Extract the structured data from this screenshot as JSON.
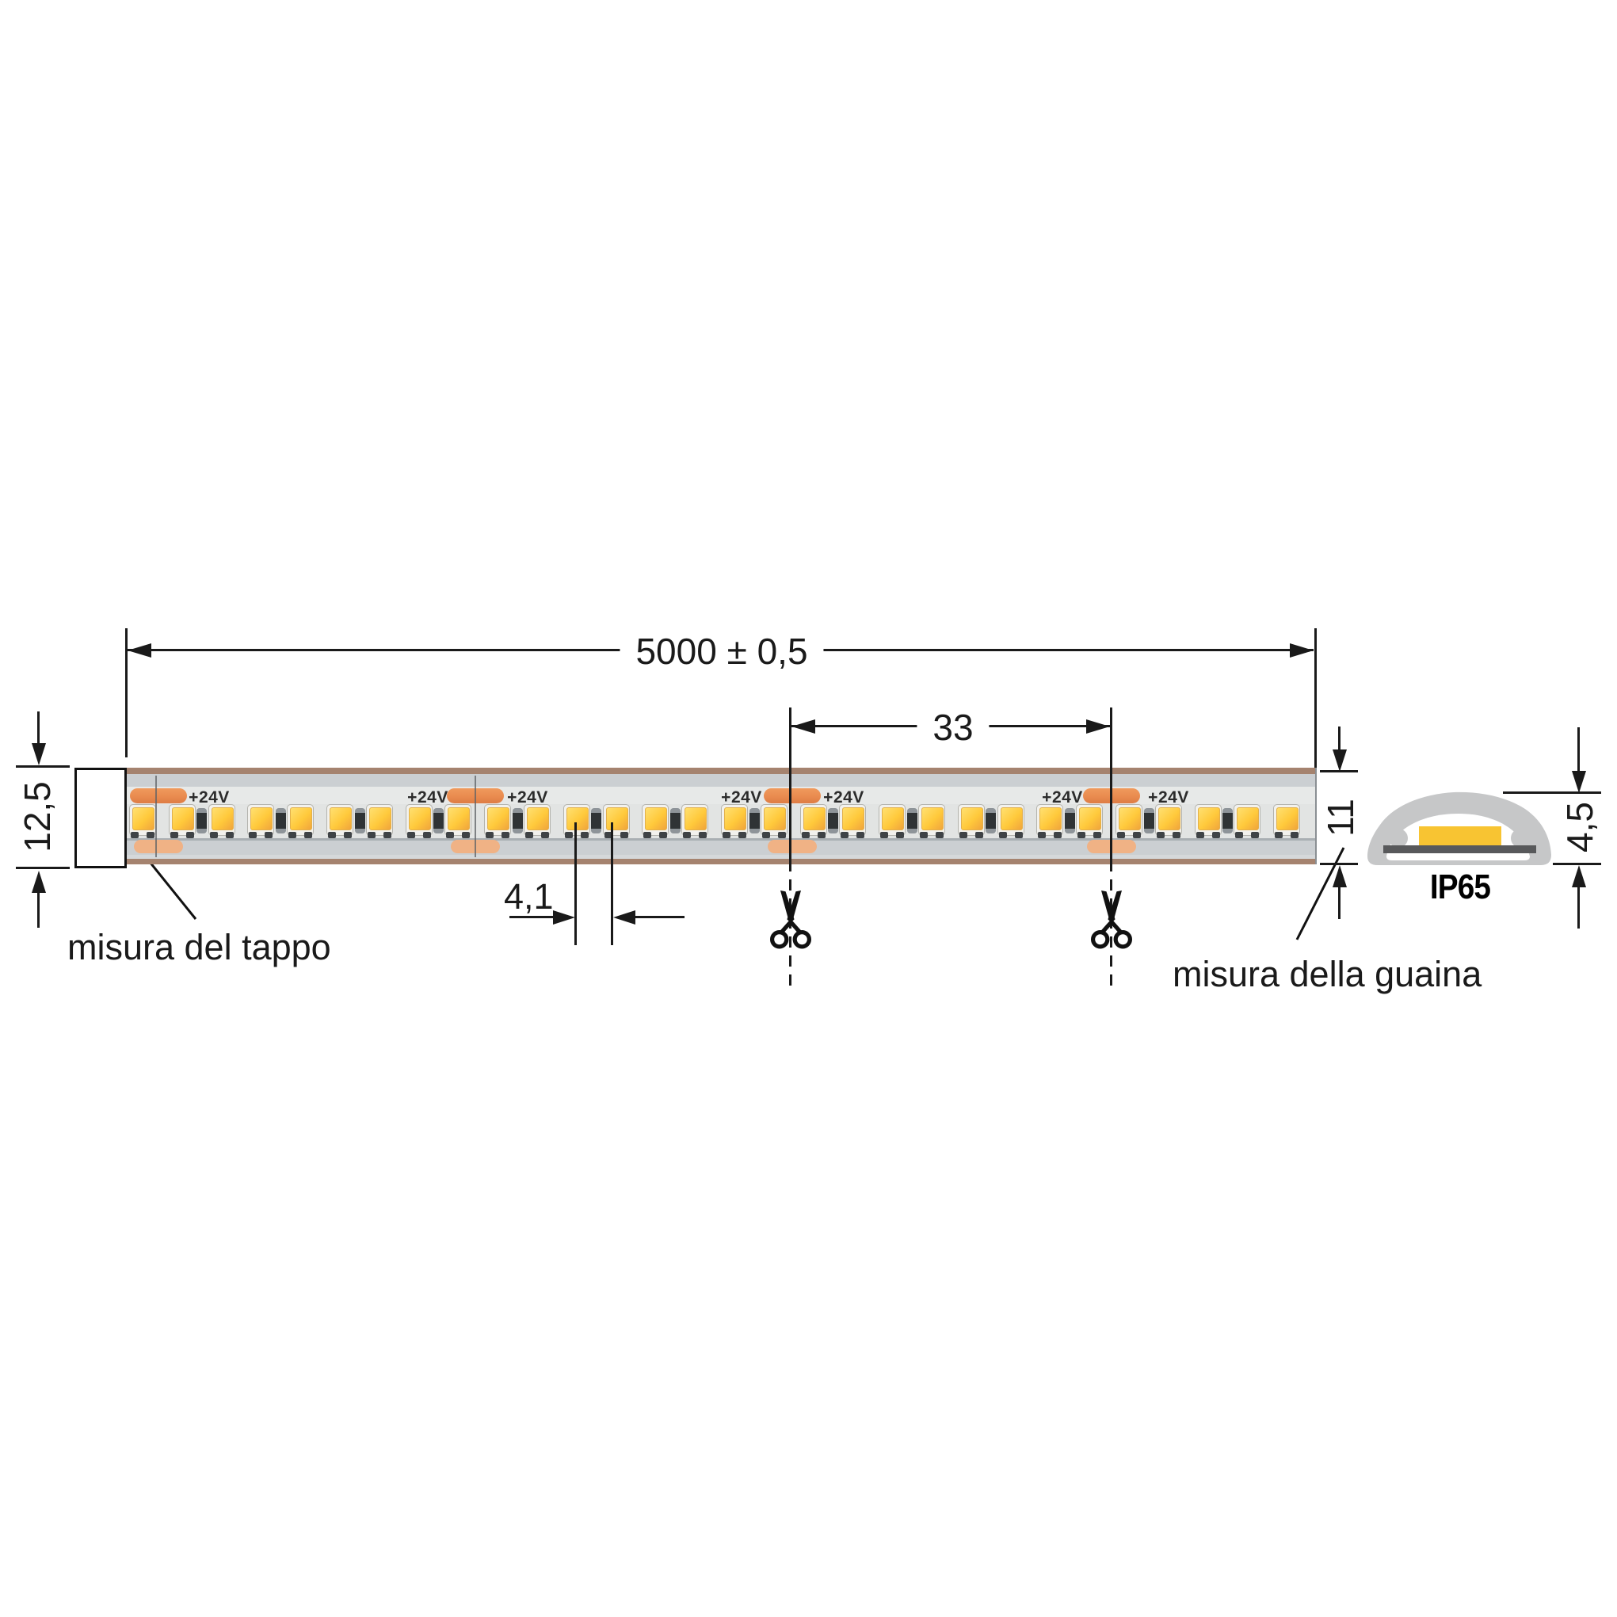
{
  "drawing": {
    "subject": "LED strip IP65 dimensional drawing"
  },
  "dimensions": {
    "total_length": "5000 ± 0,5",
    "cut_unit_length": "33",
    "led_pitch": "4,1",
    "cap_height": "12,5",
    "sheath_height": "11",
    "profile_height": "4,5"
  },
  "labels": {
    "cap": "misura del tappo",
    "sheath": "misura della guaina",
    "ip_rating": "IP65"
  },
  "strip": {
    "voltage_label": "+24V",
    "top_pad_centers_x": [
      200,
      600,
      1000,
      1403
    ],
    "bottom_pad_centers_x": [
      200,
      600,
      1000,
      1403
    ],
    "voltage_label_centers_x": [
      264,
      540,
      666,
      936,
      1065,
      1341,
      1475
    ],
    "cut_mark_centers_x": [
      197,
      600
    ],
    "cut_line_centers_x": [
      998,
      1403
    ],
    "led_count": 30
  },
  "colors": {
    "ink": "#1a1a1a",
    "copper_edge": "#a5836f",
    "sheath_gray": "#cbcfd2",
    "inner_white": "#e7e9e8",
    "pad_top_orange": "#e98b4f",
    "pad_bottom_orange": "#f0b285",
    "led_yellow": "#ffc93b",
    "led_package": "#f2f1ed",
    "profile_gray": "#c6c7c8",
    "pcb_dark": "#58595b",
    "profile_led_yellow": "#f8c432"
  }
}
